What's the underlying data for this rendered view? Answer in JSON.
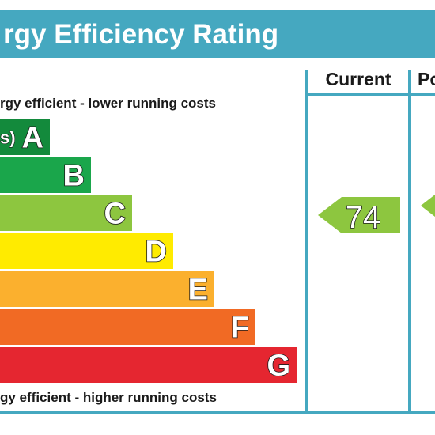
{
  "header": {
    "title": "rgy Efficiency Rating",
    "color": "#45a8c0"
  },
  "columns": {
    "current_label": "Current",
    "potential_label": "Po"
  },
  "notes": {
    "top": "rgy efficient - lower running costs",
    "bottom": "gy efficient - higher running costs"
  },
  "chart_data": {
    "type": "bar",
    "categories": [
      "A",
      "B",
      "C",
      "D",
      "E",
      "F",
      "G"
    ],
    "band_ranges": [
      "s)",
      "",
      "",
      "",
      "",
      "",
      ""
    ],
    "colors": [
      "#138a3c",
      "#1aa64b",
      "#8dc63f",
      "#ffeb00",
      "#fbb02e",
      "#f16a24",
      "#e52630"
    ],
    "current": {
      "value": 74,
      "band": "C",
      "color": "#8dc63f"
    },
    "potential": {
      "value": null,
      "band": "C",
      "color": "#8dc63f"
    }
  }
}
